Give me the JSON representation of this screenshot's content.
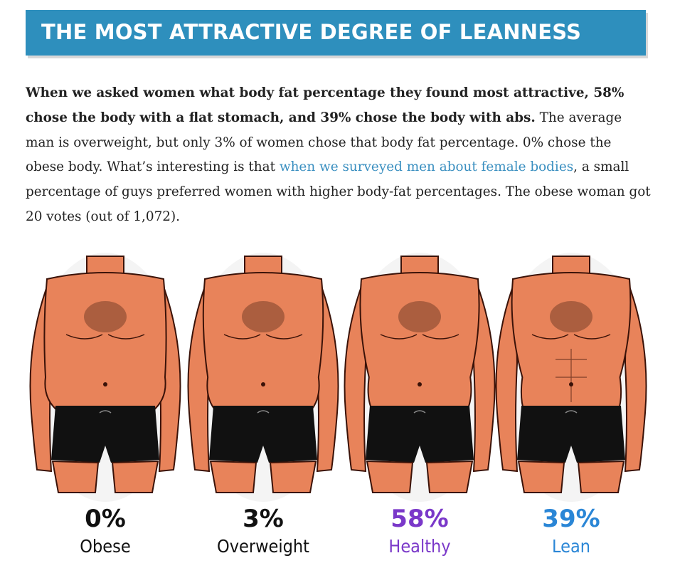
{
  "header": {
    "title": "THE MOST ATTRACTIVE DEGREE OF LEANNESS"
  },
  "paragraph": {
    "bold_text": "When we asked women what body fat percentage they found most attractive, 58% chose the body with a flat stomach, and 39% chose the body with abs.",
    "text_1": " The average man is overweight, but only 3% of women chose that body fat percentage. 0% chose the obese body. What’s interesting is that ",
    "link_text": "when we surveyed men about female bodies",
    "text_2": ", a small percentage of guys preferred women with higher body-fat percentages. The obese woman got 20 votes (out of 1,072)."
  },
  "chart_data": {
    "type": "bar",
    "categories": [
      "Obese",
      "Overweight",
      "Healthy",
      "Lean"
    ],
    "values": [
      0,
      3,
      58,
      39
    ],
    "value_labels": [
      "0%",
      "3%",
      "58%",
      "39%"
    ],
    "unit": "%",
    "colors": [
      "#111111",
      "#111111",
      "#7a38c9",
      "#2a86d6"
    ],
    "skin_color": "#e8835a",
    "shorts_color": "#111111",
    "hair_color": "#3a1a0e"
  }
}
